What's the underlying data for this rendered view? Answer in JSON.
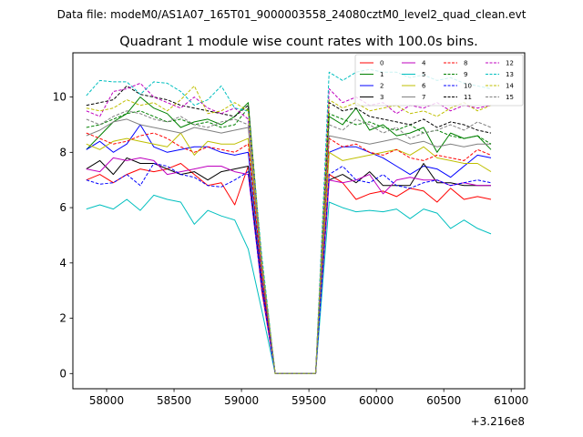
{
  "figure": {
    "suptitle": "Data file: modeM0/AS1A07_165T01_9000003558_24080cztM0_level2_quad_clean.evt",
    "title": "Quadrant 1 module wise count rates with 100.0s bins.",
    "x_offset_label": "+3.216e8"
  },
  "chart_data": {
    "type": "line",
    "title": "Quadrant 1 module wise count rates with 100.0s bins.",
    "xlabel": "",
    "ylabel": "",
    "x_offset": 321600000,
    "xlim": [
      57750,
      61100
    ],
    "ylim": [
      -0.55,
      11.6
    ],
    "xticks": [
      58000,
      58500,
      59000,
      59500,
      60000,
      60500,
      61000
    ],
    "yticks": [
      0,
      2,
      4,
      6,
      8,
      10
    ],
    "grid": false,
    "legend_location": "upper right",
    "x": [
      57850,
      57950,
      58050,
      58150,
      58250,
      58350,
      58450,
      58550,
      58650,
      58750,
      58850,
      58950,
      59050,
      59150,
      59250,
      59350,
      59450,
      59550,
      59650,
      59750,
      59850,
      59950,
      60050,
      60150,
      60250,
      60350,
      60450,
      60550,
      60650,
      60750,
      60850
    ],
    "series": [
      {
        "name": "0",
        "color": "#ff0000",
        "dashed": false,
        "values": [
          7.0,
          7.2,
          6.9,
          7.2,
          7.4,
          7.3,
          7.4,
          7.6,
          7.2,
          6.8,
          6.9,
          6.1,
          7.5,
          3.0,
          0.0,
          0.0,
          0.0,
          0.0,
          7.2,
          6.9,
          6.3,
          6.5,
          6.6,
          6.4,
          6.7,
          6.6,
          6.2,
          6.7,
          6.3,
          6.4,
          6.3
        ]
      },
      {
        "name": "1",
        "color": "#008000",
        "dashed": false,
        "values": [
          8.1,
          8.6,
          9.1,
          9.4,
          10.0,
          9.6,
          9.4,
          8.9,
          9.1,
          9.2,
          9.0,
          9.3,
          9.8,
          4.0,
          0.0,
          0.0,
          0.0,
          0.0,
          9.3,
          9.0,
          9.6,
          8.8,
          9.0,
          8.6,
          8.7,
          8.9,
          8.0,
          8.7,
          8.5,
          8.6,
          8.1
        ]
      },
      {
        "name": "2",
        "color": "#0000ff",
        "dashed": false,
        "values": [
          8.1,
          8.4,
          8.0,
          8.3,
          9.0,
          8.2,
          8.0,
          8.1,
          8.2,
          8.2,
          8.0,
          7.9,
          8.0,
          3.5,
          0.0,
          0.0,
          0.0,
          0.0,
          8.0,
          8.2,
          8.2,
          8.0,
          7.8,
          7.5,
          7.2,
          7.5,
          7.4,
          7.1,
          7.5,
          7.9,
          7.8
        ]
      },
      {
        "name": "3",
        "color": "#000000",
        "dashed": false,
        "values": [
          7.4,
          7.7,
          7.2,
          7.8,
          7.6,
          7.6,
          7.4,
          7.2,
          7.3,
          7.0,
          7.3,
          7.4,
          7.5,
          3.2,
          0.0,
          0.0,
          0.0,
          0.0,
          7.0,
          7.2,
          6.9,
          7.3,
          6.8,
          6.8,
          6.8,
          7.6,
          6.9,
          6.9,
          6.8,
          6.8,
          6.8
        ]
      },
      {
        "name": "4",
        "color": "#bf00bf",
        "dashed": false,
        "values": [
          7.4,
          7.3,
          7.8,
          7.7,
          7.8,
          7.7,
          7.2,
          7.3,
          7.4,
          7.5,
          7.5,
          7.3,
          7.2,
          3.1,
          0.0,
          0.0,
          0.0,
          0.0,
          7.0,
          6.9,
          7.0,
          7.2,
          6.5,
          7.0,
          7.1,
          7.0,
          7.0,
          6.8,
          6.9,
          6.8,
          6.8
        ]
      },
      {
        "name": "5",
        "color": "#00bfbf",
        "dashed": false,
        "values": [
          5.95,
          6.1,
          5.95,
          6.3,
          5.9,
          6.45,
          6.3,
          6.2,
          5.4,
          5.9,
          5.7,
          5.55,
          4.5,
          2.3,
          0.0,
          0.0,
          0.0,
          0.0,
          6.2,
          6.0,
          5.85,
          5.9,
          5.85,
          5.95,
          5.6,
          5.95,
          5.8,
          5.25,
          5.55,
          5.25,
          5.05
        ]
      },
      {
        "name": "6",
        "color": "#bfbf00",
        "dashed": false,
        "values": [
          8.3,
          8.1,
          8.4,
          8.5,
          8.4,
          8.3,
          8.2,
          8.7,
          7.9,
          8.4,
          8.3,
          8.3,
          8.5,
          3.8,
          0.0,
          0.0,
          0.0,
          0.0,
          8.0,
          7.7,
          7.8,
          7.9,
          8.0,
          8.1,
          7.9,
          8.2,
          7.8,
          7.7,
          7.6,
          7.6,
          7.3
        ]
      },
      {
        "name": "7",
        "color": "#808080",
        "dashed": false,
        "values": [
          8.6,
          8.8,
          9.1,
          9.2,
          9.0,
          8.9,
          8.8,
          8.7,
          8.9,
          8.8,
          8.7,
          8.8,
          8.9,
          3.9,
          0.0,
          0.0,
          0.0,
          0.0,
          8.6,
          8.5,
          8.4,
          8.3,
          8.4,
          8.5,
          8.3,
          8.4,
          8.2,
          8.3,
          8.2,
          8.3,
          8.3
        ]
      },
      {
        "name": "8",
        "color": "#ff0000",
        "dashed": true,
        "values": [
          8.7,
          8.5,
          8.3,
          8.4,
          8.6,
          8.7,
          8.5,
          8.2,
          8.0,
          8.2,
          8.1,
          8.0,
          8.3,
          3.6,
          0.0,
          0.0,
          0.0,
          0.0,
          8.5,
          8.2,
          8.3,
          8.0,
          7.9,
          8.1,
          7.8,
          7.7,
          7.9,
          7.8,
          7.7,
          8.1,
          7.9
        ]
      },
      {
        "name": "9",
        "color": "#008000",
        "dashed": true,
        "values": [
          8.9,
          9.0,
          9.2,
          9.4,
          9.5,
          9.3,
          9.1,
          9.2,
          9.0,
          9.1,
          8.9,
          9.0,
          9.6,
          4.0,
          0.0,
          0.0,
          0.0,
          0.0,
          9.4,
          9.2,
          9.0,
          9.1,
          8.9,
          8.8,
          9.0,
          8.7,
          8.8,
          8.6,
          8.5,
          8.6,
          8.3
        ]
      },
      {
        "name": "10",
        "color": "#0000ff",
        "dashed": true,
        "values": [
          7.0,
          6.85,
          6.9,
          7.2,
          6.8,
          7.6,
          7.5,
          7.2,
          7.1,
          6.8,
          6.75,
          7.0,
          7.3,
          3.1,
          0.0,
          0.0,
          0.0,
          0.0,
          7.2,
          7.5,
          7.0,
          6.9,
          7.2,
          6.8,
          6.7,
          6.9,
          7.0,
          6.8,
          6.9,
          7.0,
          6.9
        ]
      },
      {
        "name": "11",
        "color": "#000000",
        "dashed": true,
        "values": [
          9.7,
          9.8,
          9.9,
          10.4,
          10.1,
          10.0,
          9.9,
          9.7,
          9.6,
          9.5,
          9.4,
          9.3,
          9.7,
          4.1,
          0.0,
          0.0,
          0.0,
          0.0,
          9.8,
          9.5,
          9.6,
          9.3,
          9.2,
          9.1,
          9.0,
          9.2,
          8.9,
          9.1,
          9.0,
          8.8,
          8.7
        ]
      },
      {
        "name": "12",
        "color": "#bf00bf",
        "dashed": true,
        "values": [
          9.5,
          9.3,
          10.2,
          10.3,
          10.5,
          10.0,
          9.8,
          9.6,
          10.0,
          9.6,
          9.4,
          9.6,
          9.2,
          4.1,
          0.0,
          0.0,
          0.0,
          0.0,
          10.3,
          9.8,
          10.0,
          9.7,
          9.8,
          9.4,
          9.7,
          9.6,
          9.8,
          9.5,
          9.7,
          9.6,
          9.7
        ]
      },
      {
        "name": "13",
        "color": "#00bfbf",
        "dashed": true,
        "values": [
          10.05,
          10.6,
          10.55,
          10.55,
          10.1,
          10.55,
          10.5,
          10.2,
          9.7,
          9.9,
          10.4,
          9.6,
          9.5,
          4.3,
          0.0,
          0.0,
          0.0,
          0.0,
          10.9,
          10.6,
          10.9,
          11.0,
          10.9,
          10.9,
          10.7,
          10.8,
          10.6,
          10.7,
          10.5,
          10.4,
          10.3
        ]
      },
      {
        "name": "14",
        "color": "#bfbf00",
        "dashed": true,
        "values": [
          9.6,
          9.5,
          9.6,
          9.9,
          9.7,
          9.8,
          9.5,
          9.9,
          10.4,
          9.4,
          9.5,
          9.8,
          9.5,
          4.1,
          0.0,
          0.0,
          0.0,
          0.0,
          9.9,
          9.6,
          9.8,
          9.5,
          9.6,
          9.7,
          9.4,
          9.5,
          9.3,
          9.6,
          9.8,
          9.5,
          9.7
        ]
      },
      {
        "name": "15",
        "color": "#808080",
        "dashed": true,
        "values": [
          9.2,
          9.0,
          9.3,
          9.5,
          9.4,
          9.2,
          9.1,
          9.3,
          9.0,
          8.9,
          9.1,
          9.2,
          9.0,
          3.9,
          0.0,
          0.0,
          0.0,
          0.0,
          9.0,
          8.8,
          9.2,
          9.0,
          8.7,
          8.9,
          8.5,
          8.7,
          8.8,
          9.0,
          8.8,
          9.1,
          8.9
        ]
      }
    ]
  }
}
